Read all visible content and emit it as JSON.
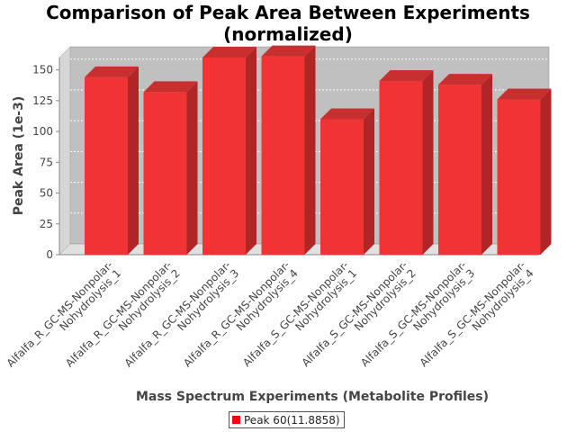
{
  "chart_data": {
    "type": "bar",
    "title": "Comparison of Peak Area Between Experiments\n(normalized)",
    "xlabel": "Mass Spectrum Experiments (Metabolite Profiles)",
    "ylabel": "Peak Area (1e-3)",
    "ylim": [
      0,
      160
    ],
    "yticks": [
      0,
      25,
      50,
      75,
      100,
      125,
      150
    ],
    "categories": [
      "Alfalfa_R_GC-MS-Nonpolar-Nohydrolysis_1",
      "Alfalfa_R_GC-MS-Nonpolar-Nohydrolysis_2",
      "Alfalfa_R_GC-MS-Nonpolar-Nohydrolysis_3",
      "Alfalfa_R_GC-MS-Nonpolar-Nohydrolysis_4",
      "Alfalfa_S_GC-MS-Nonpolar-Nohydrolysis_1",
      "Alfalfa_S_GC-MS-Nonpolar-Nohydrolysis_2",
      "Alfalfa_S_GC-MS-Nonpolar-Nohydrolysis_3",
      "Alfalfa_S_GC-MS-Nonpolar-Nohydrolysis_4"
    ],
    "category_lines": [
      [
        "Alfalfa_R_GC-MS-Nonpolar-",
        "Nohydrolysis_1"
      ],
      [
        "Alfalfa_R_GC-MS-Nonpolar-",
        "Nohydrolysis_2"
      ],
      [
        "Alfalfa_R_GC-MS-Nonpolar-",
        "Nohydrolysis_3"
      ],
      [
        "Alfalfa_R_GC-MS-Nonpolar-",
        "Nohydrolysis_4"
      ],
      [
        "Alfalfa_S_GC-MS-Nonpolar-",
        "Nohydrolysis_1"
      ],
      [
        "Alfalfa_S_GC-MS-Nonpolar-",
        "Nohydrolysis_2"
      ],
      [
        "Alfalfa_S_GC-MS-Nonpolar-",
        "Nohydrolysis_3"
      ],
      [
        "Alfalfa_S_GC-MS-Nonpolar-",
        "Nohydrolysis_4"
      ]
    ],
    "series": [
      {
        "name": "Peak 60(11.8858)",
        "values": [
          144,
          132,
          160,
          161,
          110,
          141,
          138,
          126
        ]
      }
    ],
    "grid": true,
    "legend": "bottom",
    "colors": {
      "bar": "#f03333",
      "bar_side": "#b02626",
      "bar_top": "#c83030",
      "plot_bg": "#c0c0c0",
      "plot_wall": "#e0e0e0",
      "grid": "#ffffff",
      "legend_swatch": "#ff0000"
    }
  }
}
